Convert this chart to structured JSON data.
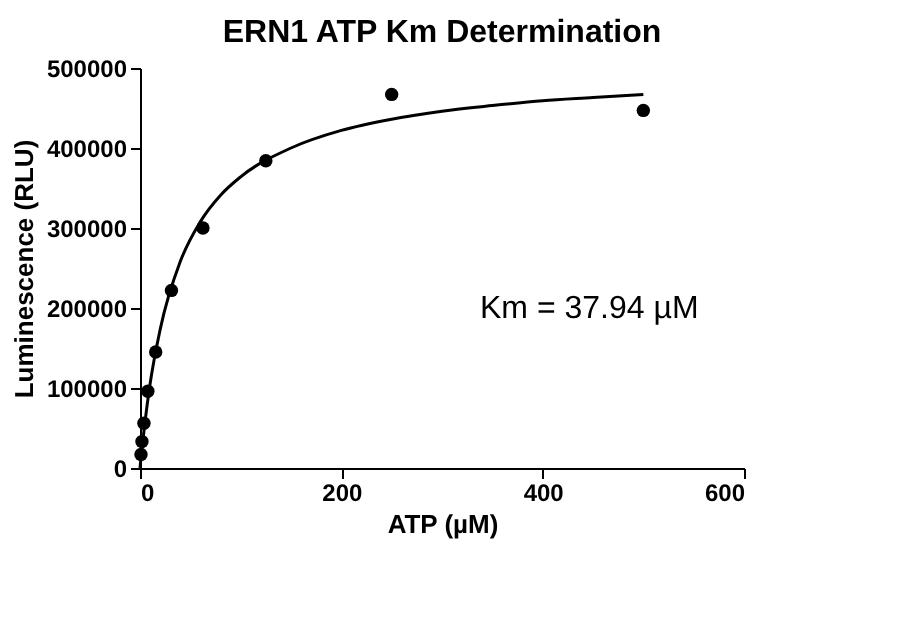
{
  "chart_data": {
    "type": "scatter",
    "title": "ERN1 ATP Km Determination",
    "xlabel": "ATP (µM)",
    "ylabel": "Luminescence (RLU)",
    "xlim": [
      0,
      600
    ],
    "xticks": [
      0,
      200,
      400,
      600
    ],
    "ylim": [
      0,
      500000
    ],
    "yticks": [
      0,
      100000,
      200000,
      300000,
      400000,
      500000
    ],
    "grid": false,
    "marker": "circle",
    "annotations": [
      "Km = 37.94 µM"
    ],
    "series": [
      {
        "type": "scatter",
        "color": "#000000",
        "x": [
          0.98,
          1.95,
          3.9,
          7.8,
          15.6,
          31.25,
          62.5,
          125,
          250,
          500
        ],
        "values": [
          17000,
          33000,
          56000,
          96000,
          145000,
          222000,
          300000,
          384000,
          467000,
          447000
        ]
      },
      {
        "type": "line",
        "color": "#000000",
        "marker": "none",
        "line_style": "solid",
        "x": [
          0,
          2,
          5,
          10,
          20,
          40,
          60,
          80,
          100,
          150,
          200,
          250,
          300,
          350,
          400,
          450,
          500
        ],
        "values": [
          0,
          25000,
          58000,
          105000,
          173000,
          258000,
          308000,
          341000,
          364000,
          400000,
          422000,
          436000,
          446000,
          453000,
          459000,
          463000,
          467000
        ]
      }
    ]
  }
}
